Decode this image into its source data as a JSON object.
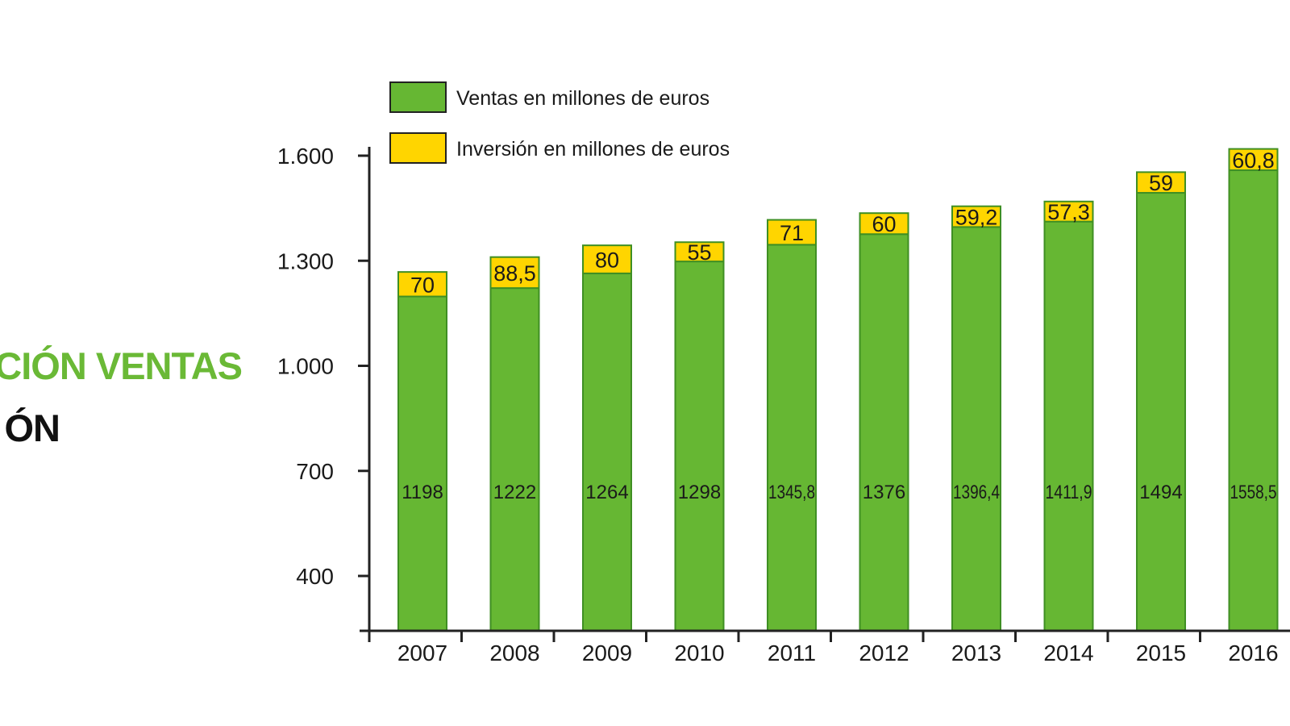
{
  "side_title": {
    "line1": "CIÓN VENTAS",
    "line2": "ÓN"
  },
  "colors": {
    "green": "#66b733",
    "yellow": "#ffd500",
    "bar_border": "#3f8f23",
    "title_green": "#6ab936",
    "axis": "#222222"
  },
  "chart_data": {
    "type": "bar",
    "stacked": true,
    "categories": [
      "2007",
      "2008",
      "2009",
      "2010",
      "2011",
      "2012",
      "2013",
      "2014",
      "2015",
      "2016"
    ],
    "series": [
      {
        "name": "Ventas en millones de euros",
        "color": "#66b733",
        "values": [
          1198,
          1222,
          1264,
          1298,
          1345.8,
          1376,
          1396.4,
          1411.9,
          1494,
          1558.5
        ],
        "labels": [
          "1198",
          "1222",
          "1264",
          "1298",
          "1345,8",
          "1376",
          "1396,4",
          "1411,9",
          "1494",
          "1558,5"
        ]
      },
      {
        "name": "Inversión en millones de euros",
        "color": "#ffd500",
        "values": [
          70,
          88.5,
          80,
          55,
          71,
          60,
          59.2,
          57.3,
          59,
          60.8
        ],
        "labels": [
          "70",
          "88,5",
          "80",
          "55",
          "71",
          "60",
          "59,2",
          "57,3",
          "59",
          "60,8"
        ]
      }
    ],
    "y_ticks": [
      400,
      700,
      1000,
      1300,
      1600
    ],
    "y_tick_labels": [
      "400",
      "700",
      "1.000",
      "1.300",
      "1.600"
    ],
    "legend": "top-left"
  }
}
